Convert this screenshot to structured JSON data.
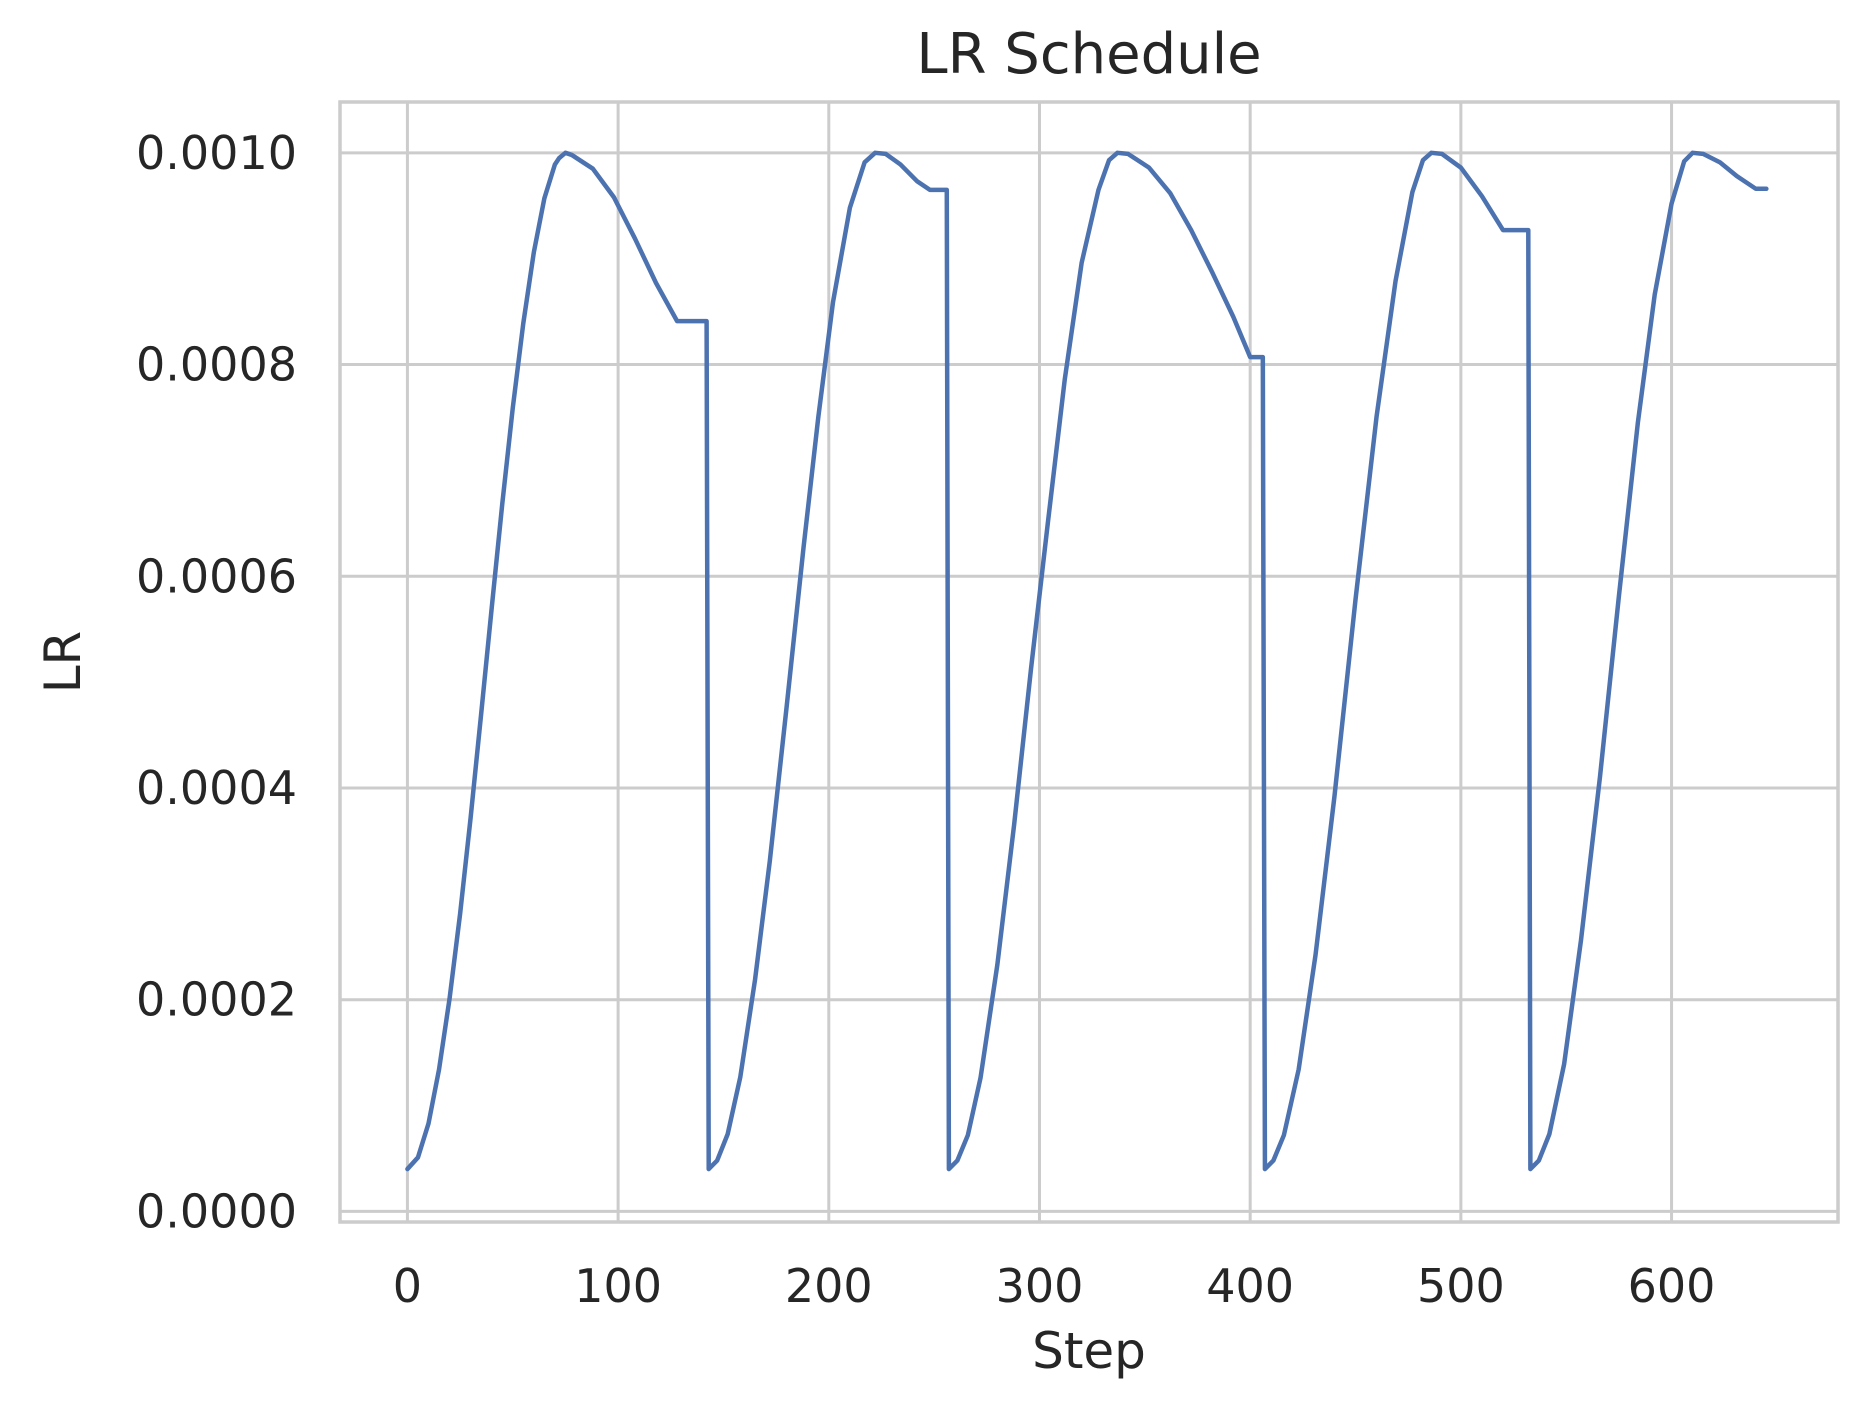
{
  "chart_data": {
    "type": "line",
    "title": "LR Schedule",
    "xlabel": "Step",
    "ylabel": "LR",
    "xlim": [
      -32,
      679
    ],
    "ylim": [
      -1e-05,
      0.001048
    ],
    "xticks": [
      0,
      100,
      200,
      300,
      400,
      500,
      600
    ],
    "xtick_labels": [
      "0",
      "100",
      "200",
      "300",
      "400",
      "500",
      "600"
    ],
    "yticks": [
      0.0,
      0.0002,
      0.0004,
      0.0006,
      0.0008,
      0.001
    ],
    "ytick_labels": [
      "0.0000",
      "0.0002",
      "0.0004",
      "0.0006",
      "0.0008",
      "0.0010"
    ],
    "grid": true,
    "color": "#4c72b0",
    "series": [
      {
        "values": [
          [
            0,
            4e-05
          ],
          [
            5,
            5.1e-05
          ],
          [
            10,
            8.3e-05
          ],
          [
            15,
            0.000134
          ],
          [
            20,
            0.000201
          ],
          [
            25,
            0.000281
          ],
          [
            30,
            0.000372
          ],
          [
            35,
            0.00047
          ],
          [
            40,
            0.00057
          ],
          [
            45,
            0.000668
          ],
          [
            50,
            0.000759
          ],
          [
            55,
            0.000839
          ],
          [
            60,
            0.000906
          ],
          [
            65,
            0.000957
          ],
          [
            70,
            0.000989
          ],
          [
            72,
            0.000995
          ],
          [
            75,
            0.001
          ],
          [
            78,
            0.000998
          ],
          [
            88,
            0.000985
          ],
          [
            98,
            0.000958
          ],
          [
            108,
            0.000919
          ],
          [
            118,
            0.000877
          ],
          [
            128,
            0.000841
          ],
          [
            142,
            0.000841
          ],
          [
            143,
            4e-05
          ],
          [
            147,
            4.8e-05
          ],
          [
            152,
            7.3e-05
          ],
          [
            158,
            0.000127
          ],
          [
            165,
            0.000219
          ],
          [
            172,
            0.000331
          ],
          [
            180,
            0.000477
          ],
          [
            188,
            0.000627
          ],
          [
            195,
            0.00075
          ],
          [
            202,
            0.000859
          ],
          [
            210,
            0.000948
          ],
          [
            217,
            0.000991
          ],
          [
            222,
            0.001
          ],
          [
            227,
            0.000999
          ],
          [
            234,
            0.000989
          ],
          [
            242,
            0.000973
          ],
          [
            248,
            0.000965
          ],
          [
            256,
            0.000965
          ],
          [
            257,
            4e-05
          ],
          [
            261,
            4.8e-05
          ],
          [
            266,
            7.2e-05
          ],
          [
            272,
            0.000126
          ],
          [
            280,
            0.000233
          ],
          [
            288,
            0.000366
          ],
          [
            296,
            0.000513
          ],
          [
            304,
            0.000651
          ],
          [
            312,
            0.000786
          ],
          [
            320,
            0.000896
          ],
          [
            328,
            0.000965
          ],
          [
            333,
            0.000993
          ],
          [
            337,
            0.001
          ],
          [
            342,
            0.000999
          ],
          [
            352,
            0.000986
          ],
          [
            362,
            0.000962
          ],
          [
            372,
            0.000927
          ],
          [
            382,
            0.000887
          ],
          [
            392,
            0.000845
          ],
          [
            400,
            0.000807
          ],
          [
            406,
            0.000807
          ],
          [
            407,
            4e-05
          ],
          [
            411,
            4.8e-05
          ],
          [
            416,
            7.2e-05
          ],
          [
            423,
            0.000134
          ],
          [
            431,
            0.000242
          ],
          [
            440,
            0.000392
          ],
          [
            450,
            0.000578
          ],
          [
            460,
            0.000751
          ],
          [
            469,
            0.000879
          ],
          [
            477,
            0.000963
          ],
          [
            482,
            0.000993
          ],
          [
            486,
            0.001
          ],
          [
            491,
            0.000999
          ],
          [
            500,
            0.000986
          ],
          [
            510,
            0.000959
          ],
          [
            520,
            0.000927
          ],
          [
            532,
            0.000927
          ],
          [
            533,
            4e-05
          ],
          [
            537,
            4.8e-05
          ],
          [
            542,
            7.3e-05
          ],
          [
            549,
            0.000139
          ],
          [
            557,
            0.000256
          ],
          [
            566,
            0.00041
          ],
          [
            575,
            0.000581
          ],
          [
            584,
            0.000745
          ],
          [
            592,
            0.000866
          ],
          [
            600,
            0.000952
          ],
          [
            606,
            0.000992
          ],
          [
            610,
            0.001
          ],
          [
            615,
            0.000999
          ],
          [
            623,
            0.000991
          ],
          [
            631,
            0.000978
          ],
          [
            640,
            0.000966
          ],
          [
            645,
            0.000966
          ]
        ]
      }
    ]
  }
}
